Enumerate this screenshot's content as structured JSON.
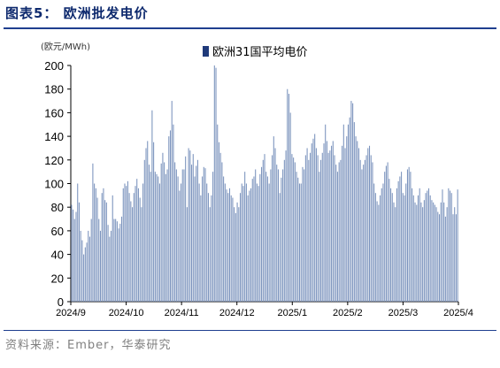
{
  "figure": {
    "title": "图表5：  欧洲批发电价",
    "source": "资料来源：Ember，华泰研究"
  },
  "chart_data": {
    "type": "bar",
    "ylabel": "(欧元/MWh)",
    "ylim": [
      0,
      200
    ],
    "yticks": [
      0,
      20,
      40,
      60,
      80,
      100,
      120,
      140,
      160,
      180,
      200
    ],
    "x_tick_labels": [
      "2024/9",
      "2024/10",
      "2024/11",
      "2024/12",
      "2025/1",
      "2025/2",
      "2025/3",
      "2025/4"
    ],
    "x_start": "2024-09-01",
    "x_end": "2025-04-01",
    "grid": false,
    "legend_position": "top-center",
    "bar_color": "#7b93bd",
    "legend_color": "#1f3a7a",
    "series": [
      {
        "name": "欧洲31国平均电价",
        "values": [
          82,
          78,
          70,
          76,
          100,
          84,
          60,
          52,
          40,
          46,
          50,
          60,
          55,
          70,
          117,
          100,
          96,
          88,
          70,
          60,
          92,
          96,
          86,
          84,
          65,
          55,
          60,
          90,
          70,
          70,
          68,
          62,
          66,
          72,
          96,
          100,
          98,
          102,
          92,
          85,
          80,
          92,
          98,
          104,
          96,
          88,
          80,
          100,
          120,
          130,
          136,
          116,
          110,
          162,
          135,
          110,
          108,
          106,
          100,
          117,
          126,
          118,
          108,
          112,
          140,
          145,
          170,
          150,
          118,
          112,
          106,
          94,
          100,
          112,
          112,
          123,
          80,
          130,
          128,
          116,
          125,
          106,
          115,
          120,
          100,
          90,
          106,
          114,
          113,
          100,
          92,
          80,
          90,
          110,
          200,
          198,
          150,
          135,
          126,
          118,
          106,
          100,
          95,
          92,
          96,
          90,
          88,
          80,
          75,
          84,
          80,
          92,
          100,
          98,
          110,
          100,
          90,
          94,
          96,
          104,
          106,
          112,
          100,
          98,
          108,
          114,
          120,
          125,
          110,
          106,
          100,
          112,
          124,
          140,
          130,
          116,
          112,
          92,
          105,
          112,
          120,
          128,
          180,
          176,
          160,
          125,
          122,
          118,
          110,
          105,
          100,
          100,
          114,
          112,
          124,
          130,
          120,
          126,
          134,
          138,
          142,
          130,
          124,
          110,
          120,
          126,
          134,
          150,
          136,
          126,
          128,
          132,
          136,
          124,
          116,
          110,
          118,
          120,
          132,
          150,
          130,
          140,
          150,
          156,
          170,
          168,
          152,
          140,
          136,
          130,
          120,
          112,
          116,
          120,
          124,
          130,
          132,
          124,
          118,
          100,
          92,
          85,
          82,
          90,
          96,
          100,
          110,
          115,
          118,
          104,
          96,
          92,
          84,
          80,
          96,
          102,
          106,
          110,
          92,
          90,
          100,
          112,
          114,
          110,
          96,
          90,
          84,
          82,
          90,
          96,
          84,
          80,
          86,
          92,
          94,
          96,
          90,
          86,
          84,
          82,
          80,
          76,
          74,
          84,
          95,
          84,
          72,
          80,
          96,
          94,
          92,
          74,
          80,
          74,
          95
        ]
      }
    ]
  }
}
